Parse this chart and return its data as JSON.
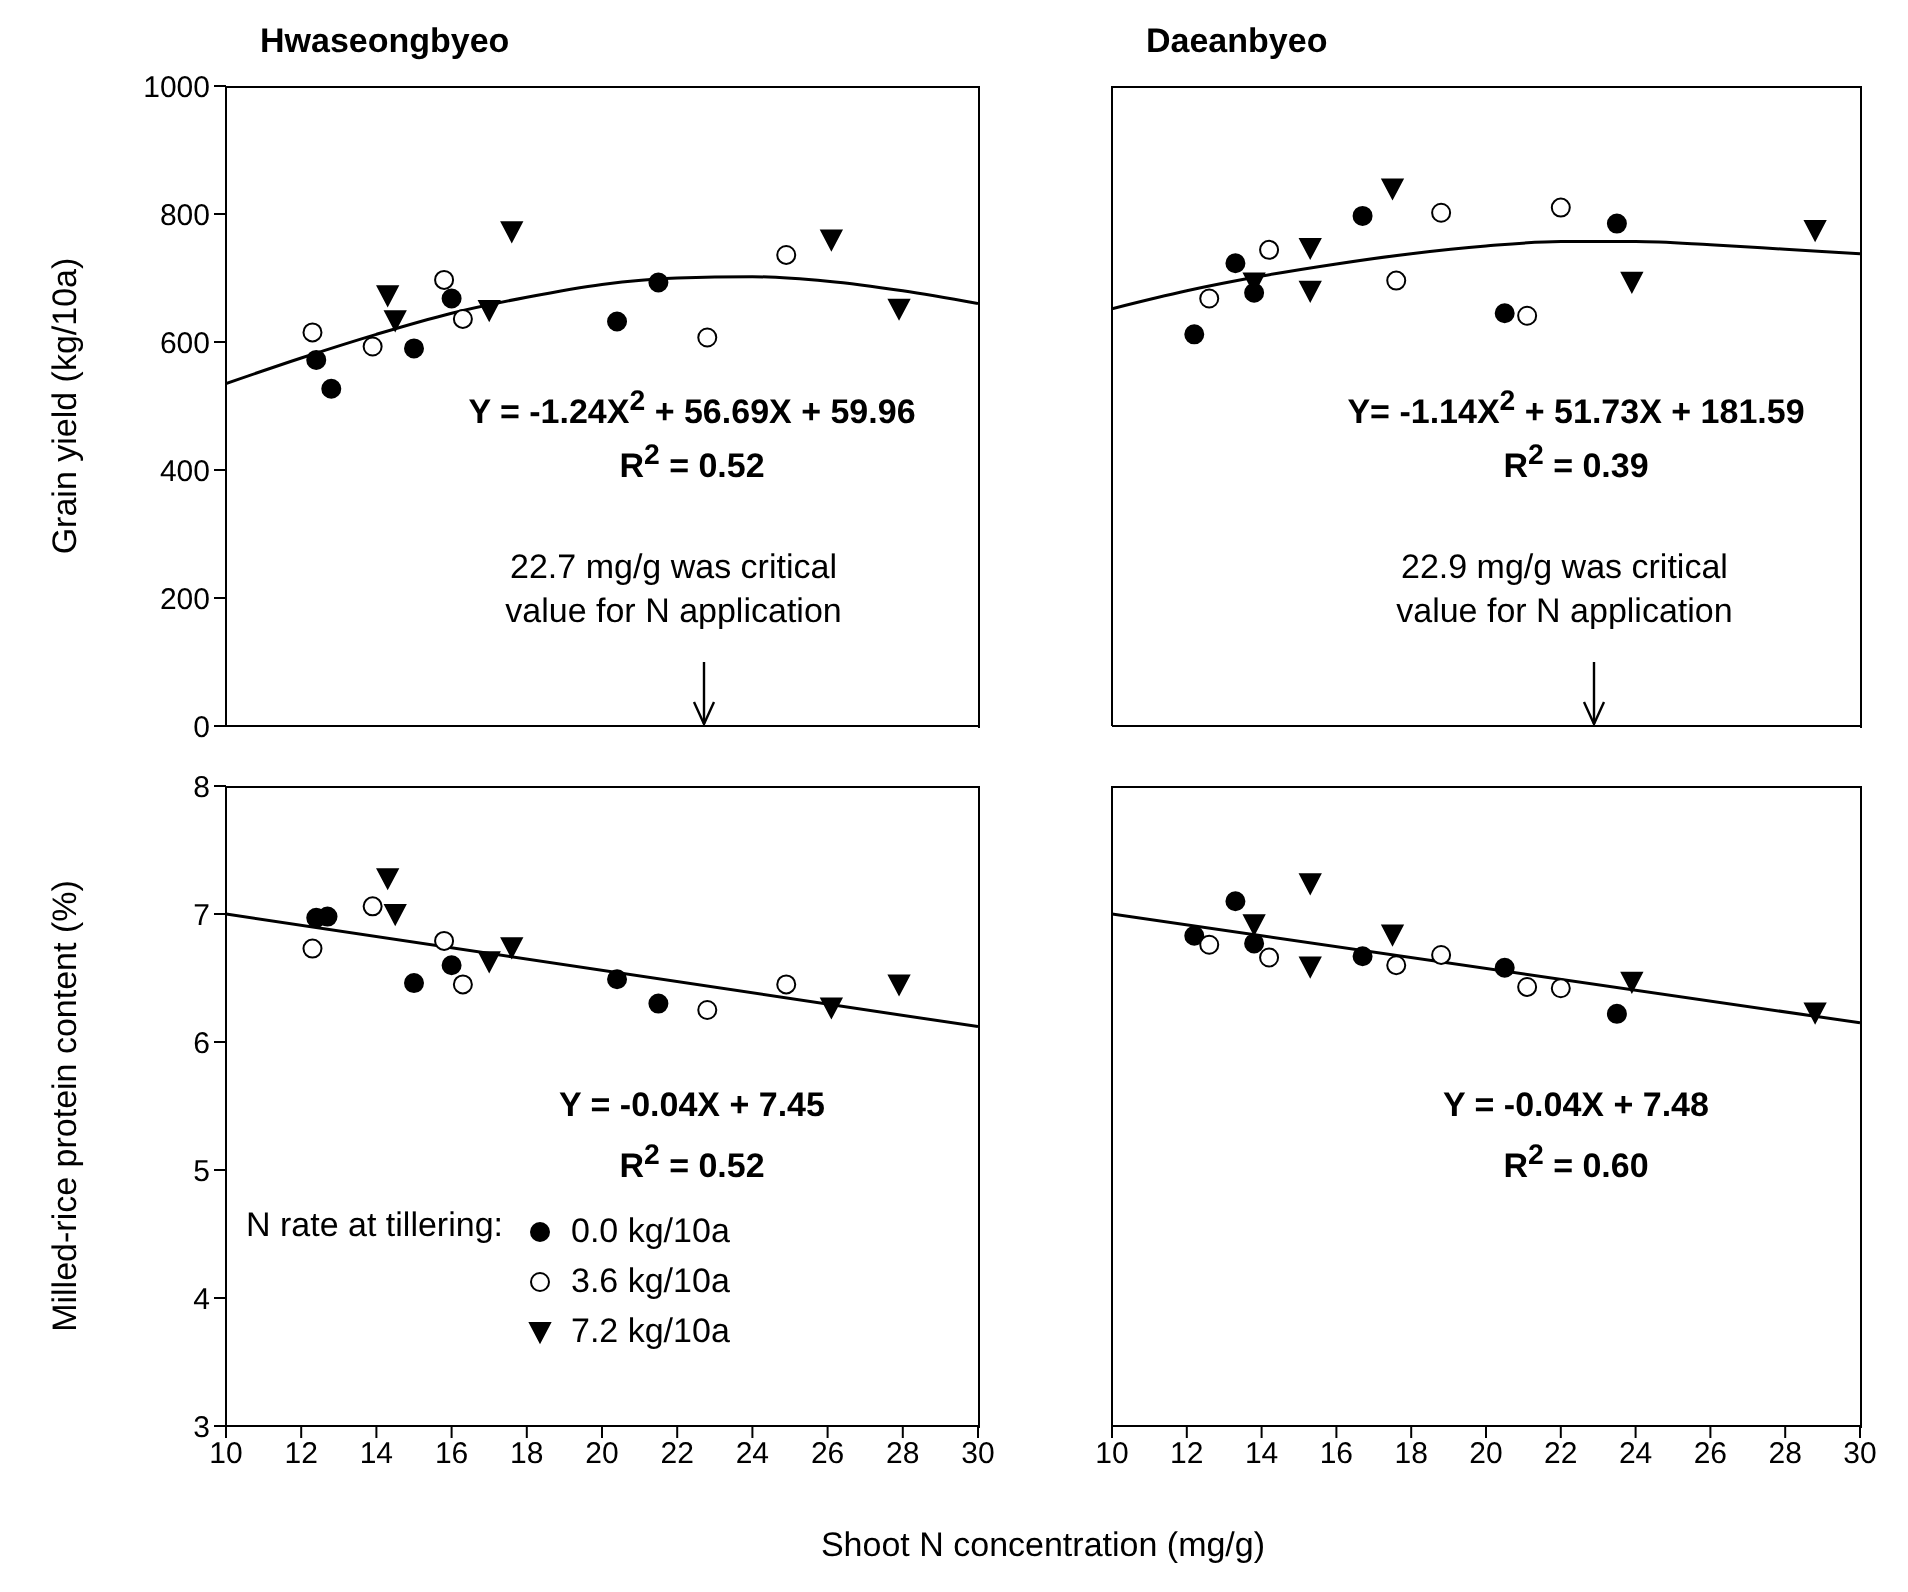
{
  "chart_data": [
    {
      "type": "scatter",
      "title": "Hwaseongbyeo",
      "ylabel": "Grain yield (kg/10a)",
      "xlim": [
        10,
        30
      ],
      "xticks": [
        10,
        12,
        14,
        16,
        18,
        20,
        22,
        24,
        26,
        28,
        30
      ],
      "ylim": [
        0,
        1000
      ],
      "yticks": [
        0,
        200,
        400,
        600,
        800,
        1000
      ],
      "tick_labels": "y",
      "legend": false,
      "annotations": [
        "Y = -1.24X$^{2}$ + 56.69X + 59.96",
        "R$^{2}$ = 0.52"
      ],
      "ref_lines": [
        {
          "axis": "x",
          "value": 22.7,
          "label": "22.7 mg/g was critical value for N application"
        }
      ],
      "series": [
        {
          "color": "#000000",
          "marker": "circle",
          "x": [
            12.4,
            12.8,
            15.0,
            16.0,
            20.4,
            21.5
          ],
          "values": [
            572,
            527,
            590,
            668,
            632,
            693
          ]
        },
        {
          "color": "#ffffff",
          "marker": "circle",
          "x": [
            12.3,
            13.9,
            15.8,
            16.3,
            22.8,
            24.9
          ],
          "values": [
            615,
            593,
            697,
            636,
            607,
            736
          ]
        },
        {
          "color": "#000000",
          "marker": "triangle",
          "x": [
            14.3,
            14.5,
            17.0,
            17.6,
            26.1,
            27.9
          ],
          "values": [
            673,
            634,
            650,
            773,
            760,
            652
          ]
        },
        {
          "type": "line",
          "color": "#000000",
          "marker": "none",
          "x": [
            10,
            12,
            14,
            16,
            18,
            20,
            22,
            24,
            26,
            28,
            30
          ],
          "values": [
            535,
            575,
            612,
            645,
            670,
            690,
            700,
            702,
            695,
            680,
            660
          ]
        }
      ]
    },
    {
      "type": "scatter",
      "title": "Daeanbyeo",
      "xlim": [
        10,
        30
      ],
      "xticks": [
        10,
        12,
        14,
        16,
        18,
        20,
        22,
        24,
        26,
        28,
        30
      ],
      "ylim": [
        0,
        1000
      ],
      "yticks": [
        0,
        200,
        400,
        600,
        800,
        1000
      ],
      "tick_labels": false,
      "legend": false,
      "annotations": [
        "Y= -1.14X$^{2}$ + 51.73X + 181.59",
        "R$^{2}$ = 0.39"
      ],
      "ref_lines": [
        {
          "axis": "x",
          "value": 22.9,
          "label": "22.9 mg/g was critical value for N application"
        }
      ],
      "series": [
        {
          "color": "#000000",
          "marker": "circle",
          "x": [
            12.2,
            13.3,
            13.8,
            16.7,
            20.5,
            23.5
          ],
          "values": [
            612,
            723,
            677,
            797,
            645,
            785
          ]
        },
        {
          "color": "#ffffff",
          "marker": "circle",
          "x": [
            12.6,
            14.2,
            17.6,
            18.8,
            21.1,
            22.0
          ],
          "values": [
            668,
            744,
            696,
            802,
            641,
            810
          ]
        },
        {
          "color": "#000000",
          "marker": "triangle",
          "x": [
            13.8,
            15.3,
            15.3,
            17.5,
            23.9,
            28.8
          ],
          "values": [
            693,
            747,
            680,
            840,
            694,
            775
          ]
        },
        {
          "type": "line",
          "color": "#000000",
          "marker": "none",
          "x": [
            10,
            12,
            14,
            16,
            18,
            20,
            22,
            24,
            26,
            28,
            30
          ],
          "values": [
            652,
            680,
            703,
            722,
            738,
            750,
            757,
            757,
            752,
            745,
            738
          ]
        }
      ]
    },
    {
      "type": "scatter",
      "ylabel": "Milled-rice protein content (%)",
      "xlabel": "Shoot N concentration (mg/g)",
      "xlim": [
        10,
        30
      ],
      "xticks": [
        10,
        12,
        14,
        16,
        18,
        20,
        22,
        24,
        26,
        28,
        30
      ],
      "ylim": [
        3,
        8
      ],
      "yticks": [
        3,
        4,
        5,
        6,
        7,
        8
      ],
      "legend": "bottom left",
      "legend_title": "N rate at tillering:",
      "annotations": [
        "Y = -0.04X + 7.45",
        "R$^{2}$ = 0.52"
      ],
      "series": [
        {
          "name": "0.0 kg/10a",
          "color": "#000000",
          "marker": "circle",
          "x": [
            12.4,
            12.7,
            15.0,
            16.0,
            20.4,
            21.5
          ],
          "values": [
            6.97,
            6.98,
            6.46,
            6.6,
            6.49,
            6.3
          ]
        },
        {
          "name": "3.6 kg/10a",
          "color": "#ffffff",
          "marker": "circle",
          "x": [
            12.3,
            13.9,
            15.8,
            16.3,
            22.8,
            24.9
          ],
          "values": [
            6.73,
            7.06,
            6.79,
            6.45,
            6.25,
            6.45
          ]
        },
        {
          "name": "7.2 kg/10a",
          "color": "#000000",
          "marker": "triangle",
          "x": [
            14.3,
            14.5,
            17.0,
            17.6,
            26.1,
            27.9
          ],
          "values": [
            7.28,
            7.0,
            6.63,
            6.74,
            6.27,
            6.45
          ]
        },
        {
          "type": "line",
          "color": "#000000",
          "marker": "none",
          "x": [
            10,
            30
          ],
          "values": [
            7.0,
            6.12
          ]
        }
      ]
    },
    {
      "type": "scatter",
      "xlim": [
        10,
        30
      ],
      "xticks": [
        10,
        12,
        14,
        16,
        18,
        20,
        22,
        24,
        26,
        28,
        30
      ],
      "ylim": [
        3,
        8
      ],
      "yticks": [
        3,
        4,
        5,
        6,
        7,
        8
      ],
      "tick_labels": "x",
      "legend": false,
      "annotations": [
        "Y = -0.04X + 7.48",
        "R$^{2}$ = 0.60"
      ],
      "series": [
        {
          "color": "#000000",
          "marker": "circle",
          "x": [
            12.2,
            13.3,
            13.8,
            16.7,
            20.5,
            23.5
          ],
          "values": [
            6.83,
            7.1,
            6.77,
            6.67,
            6.58,
            6.22
          ]
        },
        {
          "color": "#ffffff",
          "marker": "circle",
          "x": [
            12.6,
            14.2,
            17.6,
            18.8,
            21.1,
            22.0
          ],
          "values": [
            6.76,
            6.66,
            6.6,
            6.68,
            6.43,
            6.42
          ]
        },
        {
          "color": "#000000",
          "marker": "triangle",
          "x": [
            13.8,
            15.3,
            15.3,
            17.5,
            23.9,
            28.8
          ],
          "values": [
            6.92,
            7.24,
            6.59,
            6.84,
            6.47,
            6.23
          ]
        },
        {
          "type": "line",
          "color": "#000000",
          "marker": "none",
          "x": [
            10,
            30
          ],
          "values": [
            7.0,
            6.15
          ]
        }
      ]
    }
  ]
}
